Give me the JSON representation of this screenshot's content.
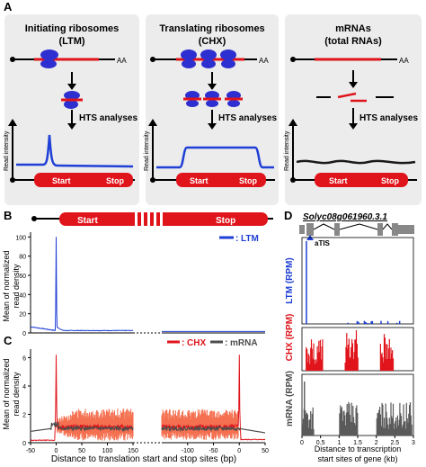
{
  "panel_a": {
    "letter": "A",
    "columns": [
      {
        "title_line1": "Initiating ribosomes",
        "title_line2": "(LTM)",
        "poly_a": "AA",
        "hts_label": "HTS analyses",
        "y_axis_label": "Read intensity",
        "start_label": "Start",
        "stop_label": "Stop"
      },
      {
        "title_line1": "Translating ribosomes",
        "title_line2": "(CHX)",
        "poly_a": "AA",
        "hts_label": "HTS analyses",
        "y_axis_label": "Read intensity",
        "start_label": "Start",
        "stop_label": "Stop"
      },
      {
        "title_line1": "mRNAs",
        "title_line2": "(total RNAs)",
        "poly_a": "AA",
        "hts_label": "HTS analyses",
        "y_axis_label": "Read intensity",
        "start_label": "Start",
        "stop_label": "Stop"
      }
    ]
  },
  "panel_b": {
    "letter": "B",
    "gene_start_label": "Start",
    "gene_stop_label": "Stop",
    "y_axis_label_line1": "Mean of normalized",
    "y_axis_label_line2": "read density",
    "legend": "LTM"
  },
  "panel_c": {
    "letter": "C",
    "y_axis_label_line1": "Mean of normalized",
    "y_axis_label_line2": "read density",
    "legend_chx": "CHX",
    "legend_mrna": "mRNA",
    "x_axis_label": "Distance to translation start and stop sites (bp)"
  },
  "panel_d": {
    "letter": "D",
    "gene_name": "Solyc08g061960.3.1",
    "atis_label": "aTIS",
    "x_axis_label_line1": "Distance to transcription",
    "x_axis_label_line2": "start sites of gene (kb)",
    "track_labels": [
      "LTM (RPM)",
      "CHX (RPM)",
      "mRNA (RPM)"
    ]
  },
  "colors": {
    "ltm": "#1f3fd6",
    "chx": "#e0141b",
    "chx_light": "#f47050",
    "mrna": "#4d4d4d",
    "cds": "#e0141b",
    "ribosome": "#2d2fd0",
    "panel_bg": "#ececec"
  },
  "chart_data": [
    {
      "id": "B",
      "type": "line",
      "series": [
        {
          "name": "LTM",
          "color": "#1f3fd6"
        }
      ],
      "x_left": {
        "range": [
          -50,
          150
        ],
        "ticks": [
          -50,
          0,
          50,
          100,
          150
        ]
      },
      "ylim": [
        0,
        105
      ],
      "yticks": [
        0,
        20,
        40,
        60,
        80,
        100
      ],
      "peak": {
        "x": 0,
        "y": 100
      }
    },
    {
      "id": "C",
      "type": "line",
      "series": [
        {
          "name": "CHX",
          "color": "#e0141b"
        },
        {
          "name": "mRNA",
          "color": "#4d4d4d"
        }
      ],
      "x_left": {
        "range": [
          -50,
          150
        ],
        "ticks": [
          -50,
          0,
          50,
          100,
          150
        ]
      },
      "x_right": {
        "range": [
          -150,
          50
        ],
        "ticks": [
          -100,
          -50,
          0,
          50
        ]
      },
      "ylim": [
        0,
        6.6
      ],
      "yticks": [
        0,
        2,
        4,
        6
      ],
      "chx_start_peak": 6.2,
      "chx_stop_peak": 6.2,
      "chx_level": 1.1,
      "mrna_level": 1.0
    },
    {
      "id": "D",
      "type": "bar",
      "xlim": [
        0,
        3
      ],
      "xticks": [
        0,
        0.5,
        1,
        1.5,
        2,
        2.5,
        3
      ],
      "tracks": [
        {
          "name": "LTM (RPM)",
          "color": "#1f3fd6",
          "peak_x": 0.12
        },
        {
          "name": "CHX (RPM)",
          "color": "#e0141b",
          "regions": [
            [
              0.1,
              0.55
            ],
            [
              1.15,
              1.5
            ],
            [
              2.1,
              2.45
            ]
          ]
        },
        {
          "name": "mRNA (RPM)",
          "color": "#5a5a5a",
          "regions": [
            [
              0.0,
              0.3
            ],
            [
              1.0,
              1.5
            ],
            [
              2.0,
              2.95
            ]
          ]
        }
      ]
    }
  ]
}
